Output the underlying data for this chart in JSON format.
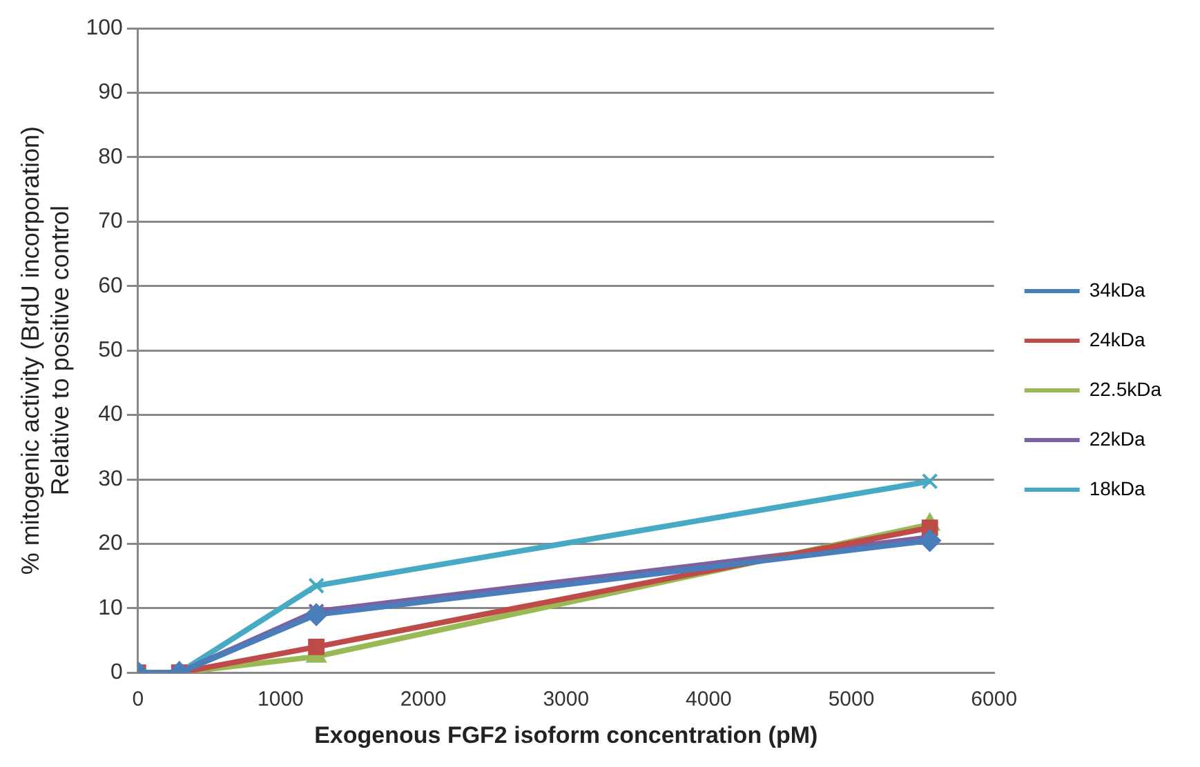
{
  "chart_data": {
    "type": "line",
    "xlabel": "Exogenous FGF2 isoform concentration (pM)",
    "ylabel": "% mitogenic activity (BrdU incorporation)\nRelative to positive control",
    "x": [
      0,
      290,
      1250,
      5550
    ],
    "xlim": [
      0,
      6000
    ],
    "xticks": [
      0,
      1000,
      2000,
      3000,
      4000,
      5000,
      6000
    ],
    "ylim": [
      0,
      100
    ],
    "yticks": [
      0,
      10,
      20,
      30,
      40,
      50,
      60,
      70,
      80,
      90,
      100
    ],
    "grid": "y",
    "legend": "right",
    "series": [
      {
        "name": "34kDa",
        "color": "#4a7ebb",
        "marker": "diamond",
        "values": [
          0,
          0,
          9,
          20.5
        ]
      },
      {
        "name": "24kDa",
        "color": "#be4b48",
        "marker": "square",
        "values": [
          0,
          0,
          4,
          22.5
        ]
      },
      {
        "name": "22.5kDa",
        "color": "#98b954",
        "marker": "triangle",
        "values": [
          0,
          0,
          2.5,
          23
        ]
      },
      {
        "name": "22kDa",
        "color": "#7d60a0",
        "marker": "cross",
        "values": [
          0,
          0,
          9.5,
          21
        ]
      },
      {
        "name": "18kDa",
        "color": "#46aac5",
        "marker": "cross",
        "values": [
          0,
          0,
          13.5,
          29.7
        ]
      }
    ]
  }
}
